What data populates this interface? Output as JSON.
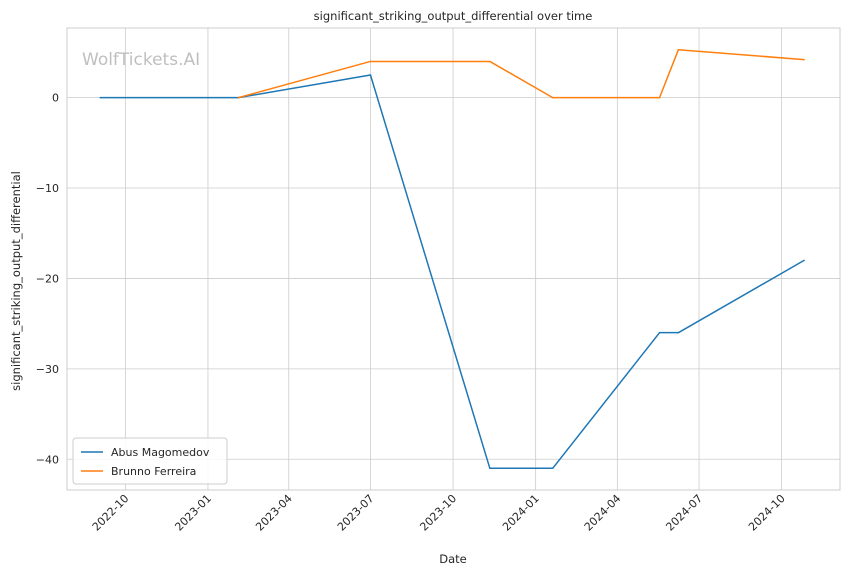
{
  "watermark": "WolfTickets.AI",
  "chart_data": {
    "type": "line",
    "title": "significant_striking_output_differential over time",
    "xlabel": "Date",
    "ylabel": "significant_striking_output_differential",
    "x_type": "date",
    "xlim": [
      "2022-07-28",
      "2024-12-05"
    ],
    "ylim": [
      -43.4,
      7.7
    ],
    "x_ticks": [
      {
        "date": "2022-10-01",
        "label": "2022-10"
      },
      {
        "date": "2023-01-01",
        "label": "2023-01"
      },
      {
        "date": "2023-04-01",
        "label": "2023-04"
      },
      {
        "date": "2023-07-01",
        "label": "2023-07"
      },
      {
        "date": "2023-10-01",
        "label": "2023-10"
      },
      {
        "date": "2024-01-01",
        "label": "2024-01"
      },
      {
        "date": "2024-04-01",
        "label": "2024-04"
      },
      {
        "date": "2024-07-01",
        "label": "2024-07"
      },
      {
        "date": "2024-10-01",
        "label": "2024-10"
      }
    ],
    "y_ticks": [
      {
        "value": 0,
        "label": "0"
      },
      {
        "value": -10,
        "label": "−10"
      },
      {
        "value": -20,
        "label": "−20"
      },
      {
        "value": -30,
        "label": "−30"
      },
      {
        "value": -40,
        "label": "−40"
      }
    ],
    "grid": true,
    "legend_position": "lower-left",
    "series": [
      {
        "name": "Abus Magomedov",
        "color": "#1f77b4",
        "points": [
          {
            "x": "2022-09-03",
            "y": 0
          },
          {
            "x": "2023-02-04",
            "y": 0
          },
          {
            "x": "2023-07-01",
            "y": 2.5
          },
          {
            "x": "2023-11-11",
            "y": -41
          },
          {
            "x": "2024-01-20",
            "y": -41
          },
          {
            "x": "2024-05-18",
            "y": -26
          },
          {
            "x": "2024-06-08",
            "y": -26
          },
          {
            "x": "2024-10-26",
            "y": -18
          }
        ]
      },
      {
        "name": "Brunno Ferreira",
        "color": "#ff7f0e",
        "points": [
          {
            "x": "2023-02-04",
            "y": 0
          },
          {
            "x": "2023-07-01",
            "y": 4
          },
          {
            "x": "2023-11-11",
            "y": 4
          },
          {
            "x": "2024-01-20",
            "y": 0
          },
          {
            "x": "2024-05-18",
            "y": 0
          },
          {
            "x": "2024-06-08",
            "y": 5.3
          },
          {
            "x": "2024-10-26",
            "y": 4.2
          }
        ]
      }
    ]
  }
}
